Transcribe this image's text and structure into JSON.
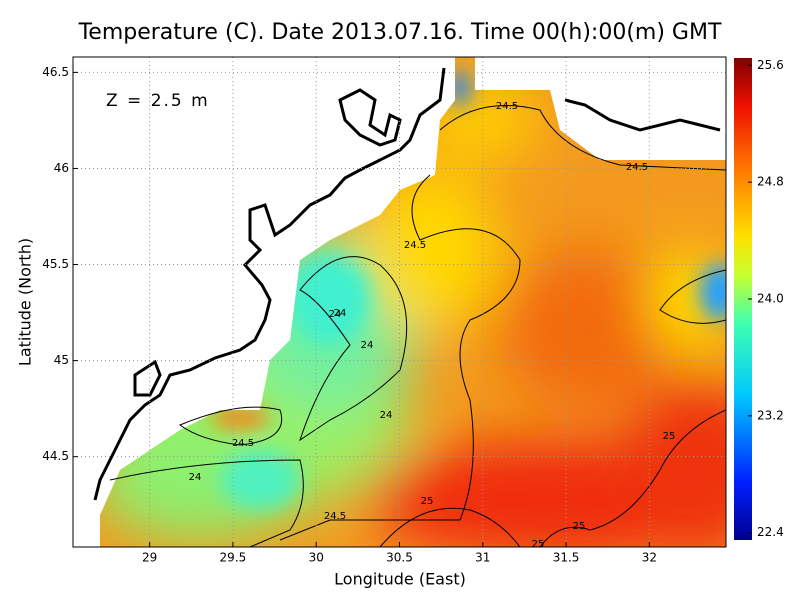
{
  "title": "Temperature (C). Date 2013.07.16. Time 00(h):00(m) GMT",
  "annotation": "Z = 2.5 m",
  "x_label": "Longitude (East)",
  "y_label": "Latitude (North)",
  "xlim": [
    28.54,
    32.46
  ],
  "ylim": [
    44.03,
    46.58
  ],
  "xticks": [
    29,
    29.5,
    30,
    30.5,
    31,
    31.5,
    32
  ],
  "yticks": [
    44.5,
    45,
    45.5,
    46,
    46.5
  ],
  "colorbar": {
    "lim": [
      22.35,
      25.65
    ],
    "ticks": [
      22.4,
      23.2,
      {
        "value": 24,
        "label": "24.0"
      },
      24.8,
      25.6
    ]
  },
  "contour_labels": [
    24.5,
    24.5,
    24.5,
    24,
    24,
    24,
    24,
    24.5,
    24,
    24.5,
    25,
    25,
    25,
    25
  ]
}
